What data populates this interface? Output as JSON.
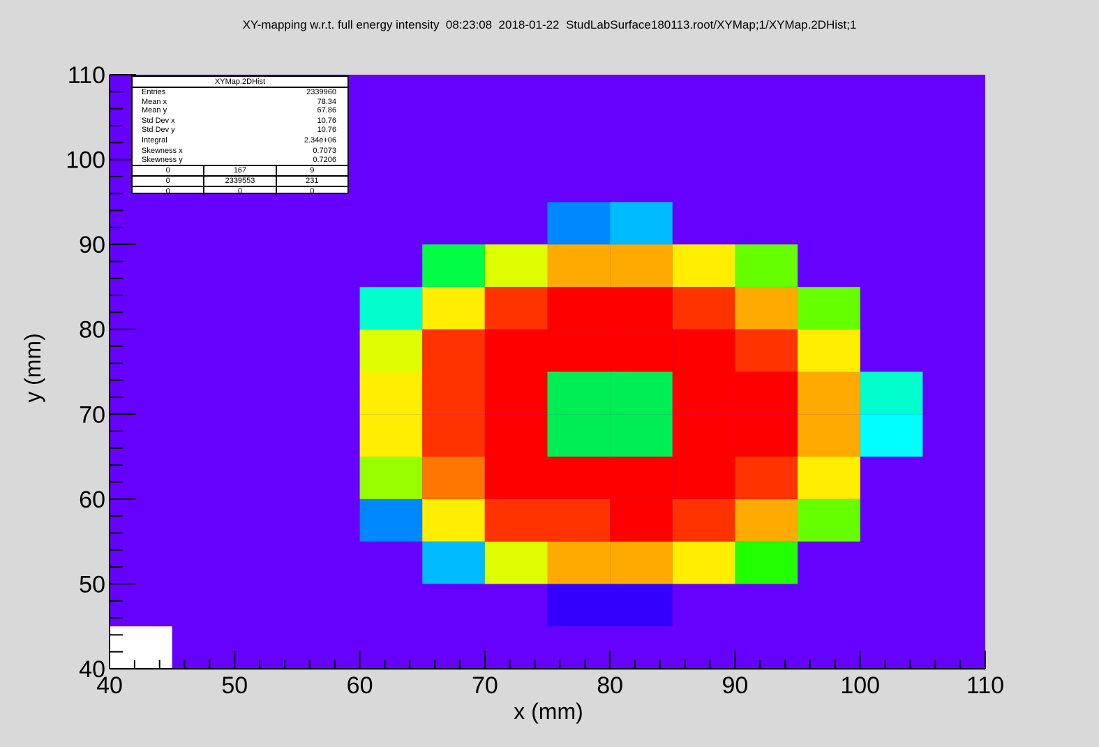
{
  "title": "XY-mapping w.r.t. full energy intensity  08:23:08  2018-01-22  StudLabSurface180113.root/XYMap;1/XYMap.2DHist;1",
  "stats": {
    "title": "XYMap.2DHist",
    "rows": [
      {
        "label": "Entries",
        "value": "2339960"
      },
      {
        "label": "Mean x",
        "value": "78.34"
      },
      {
        "label": "Mean y",
        "value": "67.86"
      },
      {
        "label": "Std Dev x",
        "value": "10.76"
      },
      {
        "label": "Std Dev y",
        "value": "10.76"
      },
      {
        "label": "Integral",
        "value": "2.34e+06"
      },
      {
        "label": "Skewness x",
        "value": "0.7073"
      },
      {
        "label": "Skewness y",
        "value": "0.7206"
      }
    ],
    "grid": [
      [
        "0",
        "167",
        "9"
      ],
      [
        "0",
        "2339553",
        "231"
      ],
      [
        "0",
        "0",
        "0"
      ]
    ]
  },
  "chart_data": {
    "type": "heatmap",
    "xlabel": "x (mm)",
    "ylabel": "y (mm)",
    "xlim": [
      40,
      110
    ],
    "ylim": [
      40,
      110
    ],
    "xticks": [
      "40",
      "50",
      "60",
      "70",
      "80",
      "90",
      "100",
      "110"
    ],
    "yticks": [
      "40",
      "50",
      "60",
      "70",
      "80",
      "90",
      "100",
      "110"
    ],
    "bin_width": 5,
    "background_color": "#6600ff",
    "empty_color": "#ffffff",
    "cells": [
      {
        "x": 40,
        "y": 40,
        "color": "#ffffff"
      },
      {
        "x": 75,
        "y": 45,
        "color": "#3300ff"
      },
      {
        "x": 80,
        "y": 45,
        "color": "#3300ff"
      },
      {
        "x": 65,
        "y": 50,
        "color": "#00bbff"
      },
      {
        "x": 70,
        "y": 50,
        "color": "#ddff00"
      },
      {
        "x": 75,
        "y": 50,
        "color": "#ffaa00"
      },
      {
        "x": 80,
        "y": 50,
        "color": "#ffaa00"
      },
      {
        "x": 85,
        "y": 50,
        "color": "#ffee00"
      },
      {
        "x": 90,
        "y": 50,
        "color": "#22ff00"
      },
      {
        "x": 60,
        "y": 55,
        "color": "#0088ff"
      },
      {
        "x": 65,
        "y": 55,
        "color": "#ffee00"
      },
      {
        "x": 70,
        "y": 55,
        "color": "#ff3300"
      },
      {
        "x": 75,
        "y": 55,
        "color": "#ff3300"
      },
      {
        "x": 80,
        "y": 55,
        "color": "#ff0000"
      },
      {
        "x": 85,
        "y": 55,
        "color": "#ff3300"
      },
      {
        "x": 90,
        "y": 55,
        "color": "#ffaa00"
      },
      {
        "x": 95,
        "y": 55,
        "color": "#66ff00"
      },
      {
        "x": 60,
        "y": 60,
        "color": "#99ff00"
      },
      {
        "x": 65,
        "y": 60,
        "color": "#ff7700"
      },
      {
        "x": 70,
        "y": 60,
        "color": "#ff0000"
      },
      {
        "x": 75,
        "y": 60,
        "color": "#ff0000"
      },
      {
        "x": 80,
        "y": 60,
        "color": "#ff0000"
      },
      {
        "x": 85,
        "y": 60,
        "color": "#ff0000"
      },
      {
        "x": 90,
        "y": 60,
        "color": "#ff3300"
      },
      {
        "x": 95,
        "y": 60,
        "color": "#ffee00"
      },
      {
        "x": 60,
        "y": 65,
        "color": "#ffee00"
      },
      {
        "x": 65,
        "y": 65,
        "color": "#ff3300"
      },
      {
        "x": 70,
        "y": 65,
        "color": "#ff0000"
      },
      {
        "x": 75,
        "y": 65,
        "color": "#00ee55"
      },
      {
        "x": 80,
        "y": 65,
        "color": "#00ee55"
      },
      {
        "x": 85,
        "y": 65,
        "color": "#ff0000"
      },
      {
        "x": 90,
        "y": 65,
        "color": "#ff0000"
      },
      {
        "x": 95,
        "y": 65,
        "color": "#ffaa00"
      },
      {
        "x": 100,
        "y": 65,
        "color": "#00ffff"
      },
      {
        "x": 60,
        "y": 70,
        "color": "#ffee00"
      },
      {
        "x": 65,
        "y": 70,
        "color": "#ff3300"
      },
      {
        "x": 70,
        "y": 70,
        "color": "#ff0000"
      },
      {
        "x": 75,
        "y": 70,
        "color": "#00ee55"
      },
      {
        "x": 80,
        "y": 70,
        "color": "#00ee55"
      },
      {
        "x": 85,
        "y": 70,
        "color": "#ff0000"
      },
      {
        "x": 90,
        "y": 70,
        "color": "#ff0000"
      },
      {
        "x": 95,
        "y": 70,
        "color": "#ffaa00"
      },
      {
        "x": 100,
        "y": 70,
        "color": "#00ffcc"
      },
      {
        "x": 60,
        "y": 75,
        "color": "#ddff00"
      },
      {
        "x": 65,
        "y": 75,
        "color": "#ff3300"
      },
      {
        "x": 70,
        "y": 75,
        "color": "#ff0000"
      },
      {
        "x": 75,
        "y": 75,
        "color": "#ff0000"
      },
      {
        "x": 80,
        "y": 75,
        "color": "#ff0000"
      },
      {
        "x": 85,
        "y": 75,
        "color": "#ff0000"
      },
      {
        "x": 90,
        "y": 75,
        "color": "#ff3300"
      },
      {
        "x": 95,
        "y": 75,
        "color": "#ffee00"
      },
      {
        "x": 60,
        "y": 80,
        "color": "#00ffcc"
      },
      {
        "x": 65,
        "y": 80,
        "color": "#ffee00"
      },
      {
        "x": 70,
        "y": 80,
        "color": "#ff3300"
      },
      {
        "x": 75,
        "y": 80,
        "color": "#ff0000"
      },
      {
        "x": 80,
        "y": 80,
        "color": "#ff0000"
      },
      {
        "x": 85,
        "y": 80,
        "color": "#ff3300"
      },
      {
        "x": 90,
        "y": 80,
        "color": "#ffaa00"
      },
      {
        "x": 95,
        "y": 80,
        "color": "#66ff00"
      },
      {
        "x": 65,
        "y": 85,
        "color": "#00ff44"
      },
      {
        "x": 70,
        "y": 85,
        "color": "#ddff00"
      },
      {
        "x": 75,
        "y": 85,
        "color": "#ffaa00"
      },
      {
        "x": 80,
        "y": 85,
        "color": "#ffaa00"
      },
      {
        "x": 85,
        "y": 85,
        "color": "#ffee00"
      },
      {
        "x": 90,
        "y": 85,
        "color": "#66ff00"
      },
      {
        "x": 75,
        "y": 90,
        "color": "#0088ff"
      },
      {
        "x": 80,
        "y": 90,
        "color": "#00bbff"
      }
    ]
  }
}
